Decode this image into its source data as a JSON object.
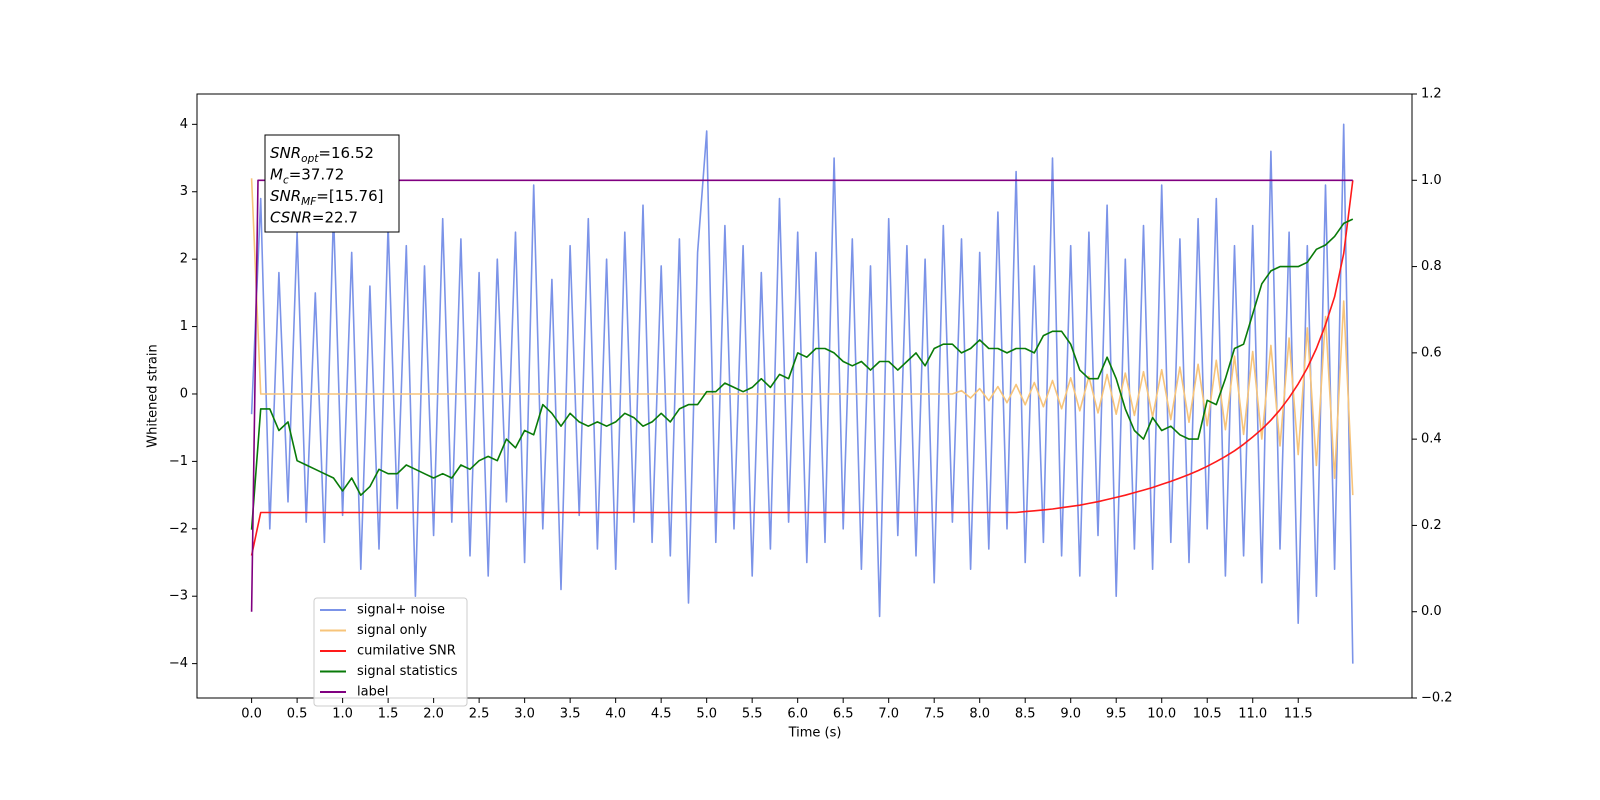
{
  "chart_data": {
    "type": "line",
    "xlabel": "Time (s)",
    "ylabel": "Whitened strain",
    "xlim": [
      -0.6,
      12.75
    ],
    "ylim": [
      -4.51,
      4.45
    ],
    "y2lim": [
      -0.2,
      1.2
    ],
    "xticks": [
      {
        "value": 0,
        "label": "0.0"
      },
      0.5,
      {
        "value": 1,
        "label": "1.0"
      },
      1.5,
      {
        "value": 2,
        "label": "2.0"
      },
      2.5,
      {
        "value": 3,
        "label": "3.0"
      },
      3.5,
      {
        "value": 4,
        "label": "4.0"
      },
      4.5,
      {
        "value": 5,
        "label": "5.0"
      },
      5.5,
      {
        "value": 6,
        "label": "6.0"
      },
      6.5,
      {
        "value": 7,
        "label": "7.0"
      },
      7.5,
      {
        "value": 8,
        "label": "8.0"
      },
      8.5,
      {
        "value": 9,
        "label": "9.0"
      },
      9.5,
      {
        "value": 10,
        "label": "10.0"
      },
      10.5,
      {
        "value": 11,
        "label": "11.0"
      },
      11.5
    ],
    "yticks": [
      {
        "value": -4,
        "label": "−4"
      },
      {
        "value": -3,
        "label": "−3"
      },
      {
        "value": -2,
        "label": "−2"
      },
      {
        "value": -1,
        "label": "−1"
      },
      0,
      1,
      2,
      3,
      4
    ],
    "y2ticks": [
      {
        "value": -0.2,
        "label": "−0.2"
      },
      {
        "value": 0,
        "label": "0.0"
      },
      0.2,
      0.4,
      0.6,
      0.8,
      {
        "value": 1,
        "label": "1.0"
      },
      1.2
    ],
    "grid": false,
    "legend": "lower left",
    "annotation": [
      {
        "symbol": "SNR",
        "sub": "opt",
        "text": "=16.52"
      },
      {
        "symbol": "M",
        "sub": "c",
        "text": "=37.72"
      },
      {
        "symbol": "SNR",
        "sub": "MF",
        "text": "=[15.76]"
      },
      {
        "symbol": "CSNR",
        "text": "=22.7"
      }
    ],
    "x": [
      0,
      0.1,
      0.2,
      0.3,
      0.4,
      0.5,
      0.6,
      0.7,
      0.8,
      0.9,
      1,
      1.1,
      1.2,
      1.3,
      1.4,
      1.5,
      1.6,
      1.7,
      1.8,
      1.9,
      2,
      2.1,
      2.2,
      2.3,
      2.4,
      2.5,
      2.6,
      2.7,
      2.8,
      2.9,
      3,
      3.1,
      3.2,
      3.3,
      3.4,
      3.5,
      3.6,
      3.7,
      3.8,
      3.9,
      4,
      4.1,
      4.2,
      4.3,
      4.4,
      4.5,
      4.6,
      4.7,
      4.8,
      4.9,
      5,
      5.1,
      5.2,
      5.3,
      5.4,
      5.5,
      5.6,
      5.7,
      5.8,
      5.9,
      6,
      6.1,
      6.2,
      6.3,
      6.4,
      6.5,
      6.6,
      6.7,
      6.8,
      6.9,
      7,
      7.1,
      7.2,
      7.3,
      7.4,
      7.5,
      7.6,
      7.7,
      7.8,
      7.9,
      8,
      8.1,
      8.2,
      8.3,
      8.4,
      8.5,
      8.6,
      8.7,
      8.8,
      8.9,
      9,
      9.1,
      9.2,
      9.3,
      9.4,
      9.5,
      9.6,
      9.7,
      9.8,
      9.9,
      10,
      10.1,
      10.2,
      10.3,
      10.4,
      10.5,
      10.6,
      10.7,
      10.8,
      10.9,
      11,
      11.1,
      11.2,
      11.3,
      11.4,
      11.5,
      11.6,
      11.7,
      11.8,
      11.9,
      12,
      12.1
    ],
    "series": [
      {
        "name": "signal+ noise",
        "color": "#7b93e8",
        "values": [
          -0.3,
          2.9,
          -2.0,
          1.8,
          -1.6,
          2.4,
          -1.9,
          1.5,
          -2.2,
          2.7,
          -1.8,
          2.1,
          -2.6,
          1.6,
          -2.3,
          2.5,
          -1.7,
          2.2,
          -3.0,
          1.9,
          -2.1,
          2.6,
          -1.9,
          2.3,
          -2.4,
          1.8,
          -2.7,
          2.0,
          -1.6,
          2.4,
          -2.5,
          3.1,
          -2.0,
          1.7,
          -2.9,
          2.2,
          -1.8,
          2.6,
          -2.3,
          2.0,
          -2.6,
          2.4,
          -1.9,
          2.8,
          -2.2,
          1.9,
          -2.4,
          2.3,
          -3.1,
          2.1,
          3.9,
          -2.2,
          2.5,
          -2.0,
          2.2,
          -2.7,
          1.8,
          -2.3,
          2.9,
          -1.9,
          2.4,
          -2.5,
          2.1,
          -2.2,
          3.5,
          -2.0,
          2.3,
          -2.6,
          1.9,
          -3.3,
          2.6,
          -2.1,
          2.2,
          -2.4,
          2.0,
          -2.8,
          2.5,
          -1.9,
          2.3,
          -2.6,
          2.1,
          -2.3,
          2.7,
          -2.0,
          3.3,
          -2.5,
          1.9,
          -2.2,
          3.5,
          -2.4,
          2.2,
          -2.7,
          2.4,
          -2.1,
          2.8,
          -3.0,
          2.0,
          -2.3,
          2.5,
          -2.6,
          3.1,
          -2.2,
          2.3,
          -2.5,
          2.6,
          -2.0,
          2.9,
          -2.7,
          2.2,
          -2.4,
          2.5,
          -2.8,
          3.6,
          -2.3,
          2.4,
          -3.4,
          2.2,
          -3.0,
          3.1,
          -2.6,
          4.0,
          -4.0
        ]
      },
      {
        "name": "signal only",
        "color": "#f7c47a",
        "values": [
          3.2,
          0,
          0,
          0,
          0,
          0,
          0,
          0,
          0,
          0,
          0,
          0,
          0,
          0,
          0,
          0,
          0,
          0,
          0,
          0,
          0,
          0,
          0,
          0,
          0,
          0,
          0,
          0,
          0,
          0,
          0,
          0,
          0,
          0,
          0,
          0,
          0,
          0,
          0,
          0,
          0,
          0,
          0,
          0,
          0,
          0,
          0,
          0,
          0,
          0,
          0,
          0,
          0,
          0,
          0,
          0,
          0,
          0,
          0,
          0,
          0,
          0,
          0,
          0,
          0,
          0,
          0,
          0,
          0,
          0,
          0,
          0,
          0,
          0,
          0,
          0,
          0,
          0,
          0.05,
          -0.06,
          0.08,
          -0.1,
          0.11,
          -0.13,
          0.14,
          -0.16,
          0.17,
          -0.19,
          0.2,
          -0.22,
          0.24,
          -0.25,
          0.26,
          -0.28,
          0.29,
          -0.3,
          0.31,
          -0.32,
          0.33,
          -0.34,
          0.36,
          -0.38,
          0.4,
          -0.42,
          0.44,
          -0.47,
          0.5,
          -0.53,
          0.56,
          -0.6,
          0.63,
          -0.67,
          0.72,
          -0.77,
          0.83,
          -0.9,
          0.98,
          -1.06,
          1.15,
          -1.25,
          1.38,
          -1.5
        ]
      },
      {
        "name": "cumilative SNR",
        "color": "#ff1a1a",
        "axis": "y2",
        "values": [
          0.13,
          0.23,
          0.23,
          0.23,
          0.23,
          0.23,
          0.23,
          0.23,
          0.23,
          0.23,
          0.23,
          0.23,
          0.23,
          0.23,
          0.23,
          0.23,
          0.23,
          0.23,
          0.23,
          0.23,
          0.23,
          0.23,
          0.23,
          0.23,
          0.23,
          0.23,
          0.23,
          0.23,
          0.23,
          0.23,
          0.23,
          0.23,
          0.23,
          0.23,
          0.23,
          0.23,
          0.23,
          0.23,
          0.23,
          0.23,
          0.23,
          0.23,
          0.23,
          0.23,
          0.23,
          0.23,
          0.23,
          0.23,
          0.23,
          0.23,
          0.23,
          0.23,
          0.23,
          0.23,
          0.23,
          0.23,
          0.23,
          0.23,
          0.23,
          0.23,
          0.23,
          0.23,
          0.23,
          0.23,
          0.23,
          0.23,
          0.23,
          0.23,
          0.23,
          0.23,
          0.23,
          0.23,
          0.23,
          0.23,
          0.23,
          0.23,
          0.23,
          0.23,
          0.23,
          0.23,
          0.23,
          0.23,
          0.23,
          0.23,
          0.23,
          0.232,
          0.234,
          0.236,
          0.238,
          0.241,
          0.244,
          0.247,
          0.251,
          0.255,
          0.26,
          0.265,
          0.27,
          0.276,
          0.282,
          0.288,
          0.295,
          0.302,
          0.31,
          0.318,
          0.327,
          0.337,
          0.348,
          0.36,
          0.373,
          0.388,
          0.405,
          0.423,
          0.444,
          0.468,
          0.496,
          0.528,
          0.565,
          0.61,
          0.665,
          0.73,
          0.83,
          1.0
        ]
      },
      {
        "name": "signal statistics",
        "color": "#087a08",
        "axis": "y2",
        "values": [
          0.19,
          0.47,
          0.47,
          0.42,
          0.44,
          0.35,
          0.34,
          0.33,
          0.32,
          0.31,
          0.28,
          0.31,
          0.27,
          0.29,
          0.33,
          0.32,
          0.32,
          0.34,
          0.33,
          0.32,
          0.31,
          0.32,
          0.31,
          0.34,
          0.33,
          0.35,
          0.36,
          0.35,
          0.4,
          0.38,
          0.42,
          0.41,
          0.48,
          0.46,
          0.43,
          0.46,
          0.44,
          0.43,
          0.44,
          0.43,
          0.44,
          0.46,
          0.45,
          0.43,
          0.44,
          0.46,
          0.44,
          0.47,
          0.48,
          0.48,
          0.51,
          0.51,
          0.53,
          0.52,
          0.51,
          0.52,
          0.54,
          0.52,
          0.55,
          0.54,
          0.6,
          0.59,
          0.61,
          0.61,
          0.6,
          0.58,
          0.57,
          0.58,
          0.56,
          0.58,
          0.58,
          0.56,
          0.58,
          0.6,
          0.57,
          0.61,
          0.62,
          0.62,
          0.6,
          0.61,
          0.63,
          0.61,
          0.61,
          0.6,
          0.61,
          0.61,
          0.6,
          0.64,
          0.65,
          0.65,
          0.62,
          0.56,
          0.54,
          0.54,
          0.59,
          0.54,
          0.47,
          0.42,
          0.4,
          0.45,
          0.42,
          0.43,
          0.41,
          0.4,
          0.4,
          0.49,
          0.48,
          0.54,
          0.61,
          0.62,
          0.69,
          0.76,
          0.79,
          0.8,
          0.8,
          0.8,
          0.81,
          0.84,
          0.85,
          0.87,
          0.9,
          0.91
        ]
      },
      {
        "name": "label",
        "color": "#800080",
        "axis": "y2",
        "x": [
          0,
          0.07,
          12.1
        ],
        "values": [
          0,
          1,
          1
        ]
      }
    ]
  }
}
